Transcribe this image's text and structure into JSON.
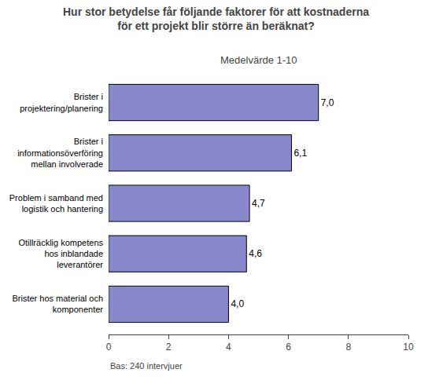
{
  "chart_data": {
    "type": "bar",
    "orientation": "horizontal",
    "title": "Hur stor betydelse får följande faktorer för att kostnaderna\nför ett projekt blir större än beräknat?",
    "subtitle": "Medelvärde 1-10",
    "categories": [
      "Brister hos material och\nkomponenter",
      "Otillräcklig kompetens\nhos inblandade\nleverantörer",
      "Problem i samband med\nlogistik och hantering",
      "Brister i\ninformationsöverföring\nmellan involverade",
      "Brister i\nprojektering/planering"
    ],
    "values": [
      4.0,
      4.6,
      4.7,
      6.1,
      7.0
    ],
    "value_labels": [
      "4,0",
      "4,6",
      "4,7",
      "6,1",
      "7,0"
    ],
    "data_labels": true,
    "color": "#8888cc",
    "xlim": [
      0,
      10
    ],
    "xticks": [
      0,
      2,
      4,
      6,
      8,
      10
    ],
    "grid": false,
    "annotations": [
      "Bas: 240 intervjuer"
    ]
  }
}
